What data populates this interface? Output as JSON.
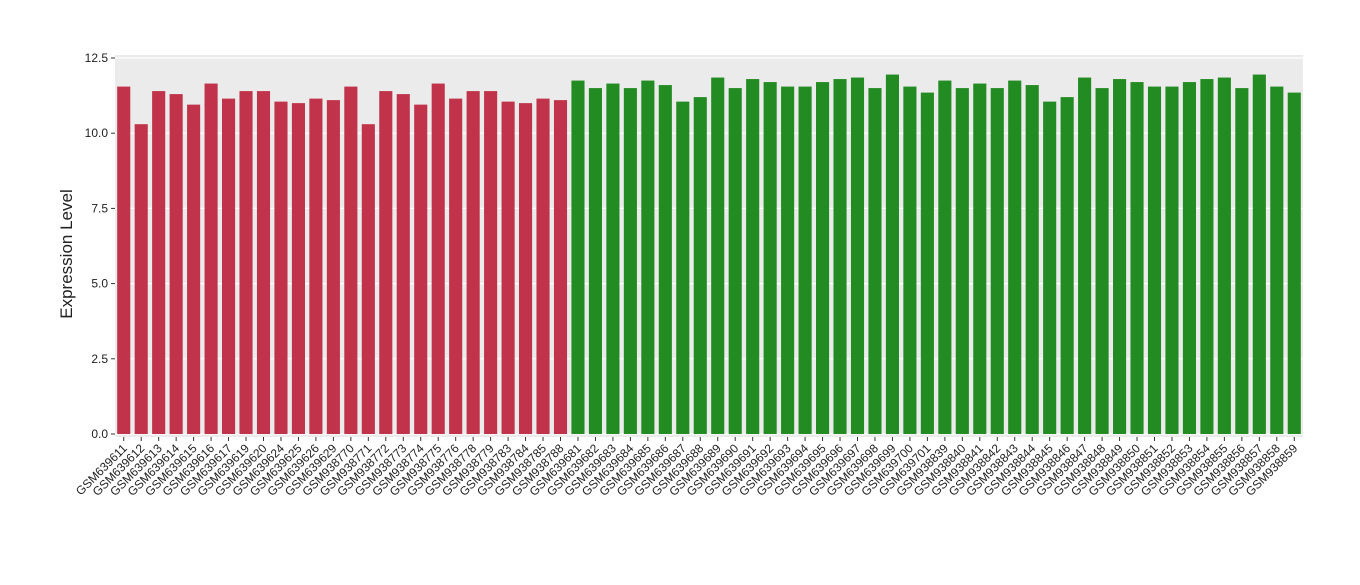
{
  "chart_data": {
    "type": "bar",
    "y_label": "Expression Level",
    "categories": [
      "GSM639611",
      "GSM639612",
      "GSM639613",
      "GSM639614",
      "GSM639615",
      "GSM639616",
      "GSM639617",
      "GSM639619",
      "GSM639620",
      "GSM639624",
      "GSM639625",
      "GSM639626",
      "GSM639629",
      "GSM938770",
      "GSM938771",
      "GSM938772",
      "GSM938773",
      "GSM938774",
      "GSM938775",
      "GSM938776",
      "GSM938778",
      "GSM938779",
      "GSM938783",
      "GSM938784",
      "GSM938785",
      "GSM938788",
      "GSM639681",
      "GSM639682",
      "GSM639683",
      "GSM639684",
      "GSM639685",
      "GSM639686",
      "GSM639687",
      "GSM639688",
      "GSM639689",
      "GSM639690",
      "GSM639691",
      "GSM639692",
      "GSM639693",
      "GSM639694",
      "GSM639695",
      "GSM639696",
      "GSM639697",
      "GSM639698",
      "GSM639699",
      "GSM639700",
      "GSM639701",
      "GSM938839",
      "GSM938840",
      "GSM938841",
      "GSM938842",
      "GSM938843",
      "GSM938844",
      "GSM938845",
      "GSM938846",
      "GSM938847",
      "GSM938848",
      "GSM938849",
      "GSM938850",
      "GSM938851",
      "GSM938852",
      "GSM938853",
      "GSM938854",
      "GSM938855",
      "GSM938856",
      "GSM938857",
      "GSM938858",
      "GSM938859"
    ],
    "values": [
      11.55,
      10.3,
      11.4,
      11.3,
      10.95,
      11.65,
      11.15,
      11.4,
      11.4,
      11.05,
      11.0,
      11.15,
      11.1,
      11.55,
      10.3,
      11.4,
      11.3,
      10.95,
      11.65,
      11.15,
      11.4,
      11.4,
      11.05,
      11.0,
      11.15,
      11.1,
      11.75,
      11.5,
      11.65,
      11.5,
      11.75,
      11.6,
      11.05,
      11.2,
      11.85,
      11.5,
      11.8,
      11.7,
      11.55,
      11.55,
      11.7,
      11.8,
      11.85,
      11.5,
      11.95,
      11.55,
      11.35,
      11.75,
      11.5,
      11.65,
      11.5,
      11.75,
      11.6,
      11.05,
      11.2,
      11.85,
      11.5,
      11.8,
      11.7,
      11.55,
      11.55,
      11.7,
      11.8,
      11.85,
      11.5,
      11.95,
      11.55,
      11.35
    ],
    "colors": [
      "#c0334a",
      "#c0334a",
      "#c0334a",
      "#c0334a",
      "#c0334a",
      "#c0334a",
      "#c0334a",
      "#c0334a",
      "#c0334a",
      "#c0334a",
      "#c0334a",
      "#c0334a",
      "#c0334a",
      "#c0334a",
      "#c0334a",
      "#c0334a",
      "#c0334a",
      "#c0334a",
      "#c0334a",
      "#c0334a",
      "#c0334a",
      "#c0334a",
      "#c0334a",
      "#c0334a",
      "#c0334a",
      "#c0334a",
      "#228b22",
      "#228b22",
      "#228b22",
      "#228b22",
      "#228b22",
      "#228b22",
      "#228b22",
      "#228b22",
      "#228b22",
      "#228b22",
      "#228b22",
      "#228b22",
      "#228b22",
      "#228b22",
      "#228b22",
      "#228b22",
      "#228b22",
      "#228b22",
      "#228b22",
      "#228b22",
      "#228b22",
      "#228b22",
      "#228b22",
      "#228b22",
      "#228b22",
      "#228b22",
      "#228b22",
      "#228b22",
      "#228b22",
      "#228b22",
      "#228b22",
      "#228b22",
      "#228b22",
      "#228b22",
      "#228b22",
      "#228b22",
      "#228b22",
      "#228b22",
      "#228b22",
      "#228b22",
      "#228b22",
      "#228b22"
    ],
    "ylim": [
      -0.1,
      12.6
    ],
    "yticks": [
      {
        "value": 0,
        "label": "0.0"
      },
      2.5,
      {
        "value": 5,
        "label": "5.0"
      },
      7.5,
      {
        "value": 10,
        "label": "10.0"
      },
      12.5
    ],
    "grid": true
  }
}
